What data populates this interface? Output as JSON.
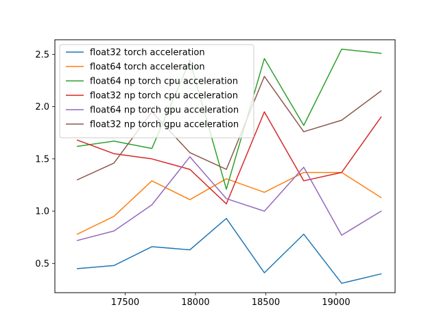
{
  "chart_data": {
    "type": "line",
    "title": "",
    "xlabel": "",
    "ylabel": "",
    "grid": false,
    "legend_position": "upper-left",
    "x": [
      17160,
      17420,
      17690,
      17960,
      18220,
      18490,
      18770,
      19040,
      19320
    ],
    "xlim": [
      17000,
      19420
    ],
    "ylim": [
      0.22,
      2.64
    ],
    "x_ticks": [
      17500,
      18000,
      18500,
      19000
    ],
    "x_tick_labels": [
      "17500",
      "18000",
      "18500",
      "19000"
    ],
    "y_ticks": [
      0.5,
      1.0,
      1.5,
      2.0,
      2.5
    ],
    "y_tick_labels": [
      "0.5",
      "1.0",
      "1.5",
      "2.0",
      "2.5"
    ],
    "series": [
      {
        "name": "float32 torch acceleration",
        "color": "#1f77b4",
        "values": [
          0.45,
          0.48,
          0.66,
          0.63,
          0.93,
          0.41,
          0.78,
          0.31,
          0.4
        ]
      },
      {
        "name": "float64 torch acceleration",
        "color": "#ff7f0e",
        "values": [
          0.78,
          0.95,
          1.29,
          1.11,
          1.31,
          1.18,
          1.37,
          1.37,
          1.13
        ]
      },
      {
        "name": "float64 np torch cpu acceleration",
        "color": "#2ca02c",
        "values": [
          1.62,
          1.67,
          1.6,
          2.44,
          1.21,
          2.46,
          1.82,
          2.55,
          2.51
        ]
      },
      {
        "name": "float32 np torch cpu acceleration",
        "color": "#d62728",
        "values": [
          1.68,
          1.55,
          1.5,
          1.4,
          1.07,
          1.95,
          1.29,
          1.37,
          1.9
        ]
      },
      {
        "name": "float64 np torch gpu acceleration",
        "color": "#9467bd",
        "values": [
          0.72,
          0.81,
          1.06,
          1.52,
          1.12,
          1.0,
          1.42,
          0.77,
          1.0
        ]
      },
      {
        "name": "float32 np torch gpu acceleration",
        "color": "#8c564b",
        "values": [
          1.3,
          1.46,
          1.95,
          1.56,
          1.4,
          2.29,
          1.76,
          1.87,
          2.15
        ]
      }
    ]
  }
}
